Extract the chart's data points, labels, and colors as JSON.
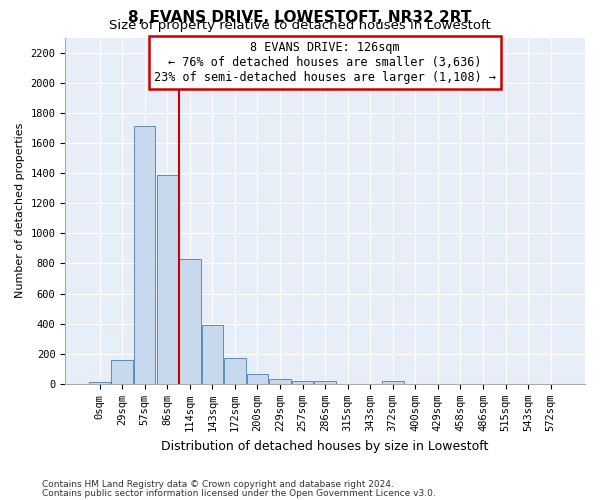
{
  "title": "8, EVANS DRIVE, LOWESTOFT, NR32 2RT",
  "subtitle": "Size of property relative to detached houses in Lowestoft",
  "xlabel": "Distribution of detached houses by size in Lowestoft",
  "ylabel": "Number of detached properties",
  "bar_labels": [
    "0sqm",
    "29sqm",
    "57sqm",
    "86sqm",
    "114sqm",
    "143sqm",
    "172sqm",
    "200sqm",
    "229sqm",
    "257sqm",
    "286sqm",
    "315sqm",
    "343sqm",
    "372sqm",
    "400sqm",
    "429sqm",
    "458sqm",
    "486sqm",
    "515sqm",
    "543sqm",
    "572sqm"
  ],
  "bar_values": [
    15,
    160,
    1710,
    1390,
    830,
    390,
    170,
    65,
    30,
    20,
    20,
    0,
    0,
    20,
    0,
    0,
    0,
    0,
    0,
    0,
    0
  ],
  "bar_color": "#c9d9ed",
  "bar_edgecolor": "#5b8db8",
  "vline_position": 3.5,
  "annotation_line1": "8 EVANS DRIVE: 126sqm",
  "annotation_line2": "← 76% of detached houses are smaller (3,636)",
  "annotation_line3": "23% of semi-detached houses are larger (1,108) →",
  "annotation_box_facecolor": "#ffffff",
  "annotation_box_edgecolor": "#cc0000",
  "ylim": [
    0,
    2300
  ],
  "yticks": [
    0,
    200,
    400,
    600,
    800,
    1000,
    1200,
    1400,
    1600,
    1800,
    2000,
    2200
  ],
  "plot_bg_color": "#e8eef8",
  "grid_color": "#ffffff",
  "title_fontsize": 11,
  "subtitle_fontsize": 9.5,
  "ylabel_fontsize": 8,
  "xlabel_fontsize": 9,
  "tick_fontsize": 7.5,
  "annotation_fontsize": 8.5,
  "footnote1": "Contains HM Land Registry data © Crown copyright and database right 2024.",
  "footnote2": "Contains public sector information licensed under the Open Government Licence v3.0.",
  "footnote_fontsize": 6.5
}
